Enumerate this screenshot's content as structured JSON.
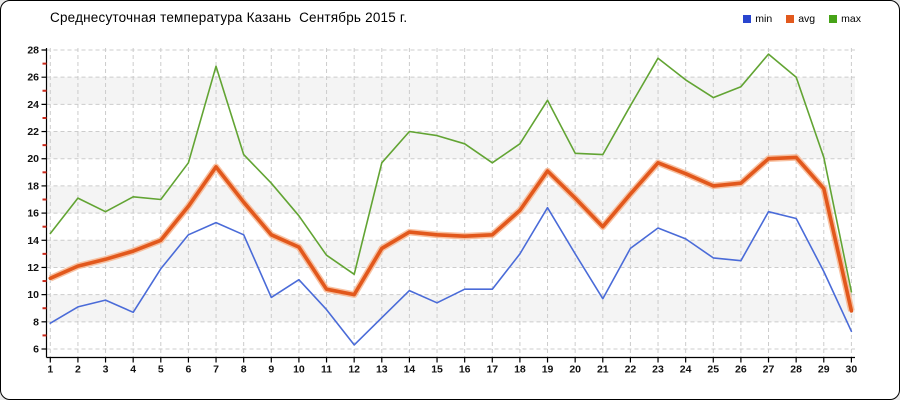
{
  "header": {
    "title": "Среднесуточная температура Казань  Сентябрь 2015 г."
  },
  "legend": [
    {
      "label": "min",
      "color": "#2945cf"
    },
    {
      "label": "avg",
      "color": "#e2591d"
    },
    {
      "label": "max",
      "color": "#46a317"
    }
  ],
  "chart_data": {
    "type": "line",
    "title": "Среднесуточная температура Казань  Сентябрь 2015 г.",
    "xlabel": "",
    "ylabel": "",
    "x": [
      1,
      2,
      3,
      4,
      5,
      6,
      7,
      8,
      9,
      10,
      11,
      12,
      13,
      14,
      15,
      16,
      17,
      18,
      19,
      20,
      21,
      22,
      23,
      24,
      25,
      26,
      27,
      28,
      29,
      30
    ],
    "series": [
      {
        "name": "min",
        "color": "#4a6bd8",
        "width": 1.6,
        "values": [
          7.9,
          9.1,
          9.6,
          8.7,
          11.9,
          14.4,
          15.3,
          14.4,
          9.8,
          11.1,
          8.9,
          6.3,
          8.3,
          10.3,
          9.4,
          10.4,
          10.4,
          13.0,
          16.4,
          13.0,
          9.7,
          13.4,
          14.9,
          14.1,
          12.7,
          12.5,
          16.1,
          15.6,
          11.7,
          7.3
        ]
      },
      {
        "name": "avg",
        "color": "#e2581c",
        "halo": "#f6b28a",
        "width": 3.6,
        "values": [
          11.2,
          12.1,
          12.6,
          13.2,
          14.0,
          16.5,
          19.4,
          16.8,
          14.4,
          13.5,
          10.4,
          10.0,
          13.4,
          14.6,
          14.4,
          14.3,
          14.4,
          16.2,
          19.1,
          17.1,
          15.0,
          17.4,
          19.7,
          18.9,
          18.0,
          18.2,
          20.0,
          20.1,
          17.8,
          8.8
        ]
      },
      {
        "name": "max",
        "color": "#62a433",
        "width": 1.6,
        "values": [
          14.5,
          17.1,
          16.1,
          17.2,
          17.0,
          19.7,
          26.8,
          20.3,
          18.2,
          15.8,
          12.9,
          11.5,
          19.7,
          22.0,
          21.7,
          21.1,
          19.7,
          21.1,
          24.3,
          20.4,
          20.3,
          23.9,
          27.4,
          25.8,
          24.5,
          25.3,
          27.7,
          26.0,
          20.1,
          10.2
        ]
      }
    ],
    "ylim": [
      6,
      28
    ],
    "y_ticks": [
      6,
      8,
      10,
      12,
      14,
      16,
      18,
      20,
      22,
      24,
      26,
      28
    ],
    "y_minor_ticks": [
      7,
      9,
      11,
      13,
      15,
      17,
      19,
      21,
      23,
      25,
      27
    ],
    "grid": "dashed",
    "grid_color": "#cccccc",
    "bands": [
      [
        8,
        10
      ],
      [
        12,
        14
      ],
      [
        16,
        18
      ],
      [
        20,
        22
      ],
      [
        24,
        26
      ]
    ],
    "band_color": "#f4f4f4",
    "axis_color": "#000000",
    "minor_tick_color": "#cc2b1d",
    "legend_position": "top-right"
  }
}
